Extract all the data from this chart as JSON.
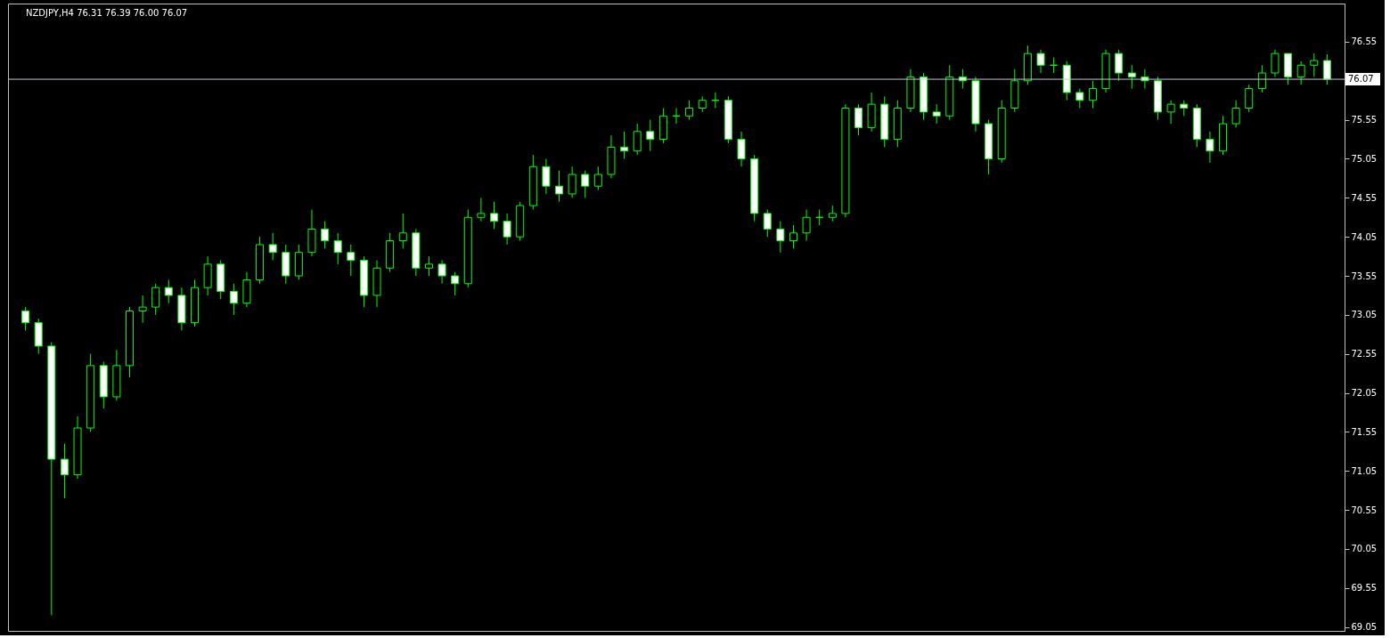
{
  "chart_data": {
    "type": "candlestick",
    "title": "NZDJPY,H4  76.31 76.39 76.00 76.07",
    "categories": [
      null,
      null,
      null,
      null,
      null,
      null,
      null,
      null,
      null,
      null,
      null,
      null,
      null,
      null,
      null,
      null,
      null,
      null,
      null,
      null,
      null,
      null,
      null,
      null,
      null,
      null,
      null,
      null,
      null,
      null,
      null,
      null,
      null,
      null,
      null,
      null,
      null,
      null,
      null,
      null,
      null,
      null,
      null,
      null,
      null,
      null,
      null,
      null,
      null,
      null,
      null,
      null,
      null,
      null,
      null,
      null,
      null,
      null,
      null,
      null,
      null,
      null,
      null,
      null,
      null,
      null,
      null,
      null,
      null,
      null,
      null,
      null,
      null,
      null,
      null,
      null,
      null,
      null,
      null,
      null,
      null,
      null,
      null,
      null,
      null,
      null,
      null,
      null,
      null,
      null,
      null,
      null,
      null,
      null,
      null,
      null,
      null,
      null,
      null,
      null,
      null
    ],
    "color": "#00ff00",
    "ohlc": [
      [
        73.1,
        73.15,
        72.85,
        72.95
      ],
      [
        72.95,
        73.0,
        72.55,
        72.65
      ],
      [
        72.65,
        72.7,
        69.2,
        71.2
      ],
      [
        71.2,
        71.4,
        70.7,
        71.0
      ],
      [
        71.0,
        71.75,
        70.95,
        71.6
      ],
      [
        71.6,
        72.55,
        71.55,
        72.4
      ],
      [
        72.4,
        72.45,
        71.85,
        72.0
      ],
      [
        72.0,
        72.6,
        71.95,
        72.4
      ],
      [
        72.4,
        73.15,
        72.25,
        73.1
      ],
      [
        73.1,
        73.3,
        72.95,
        73.15
      ],
      [
        73.15,
        73.45,
        73.05,
        73.4
      ],
      [
        73.4,
        73.5,
        73.2,
        73.3
      ],
      [
        73.3,
        73.4,
        72.85,
        72.95
      ],
      [
        72.95,
        73.5,
        72.9,
        73.4
      ],
      [
        73.4,
        73.8,
        73.3,
        73.7
      ],
      [
        73.7,
        73.75,
        73.25,
        73.35
      ],
      [
        73.35,
        73.45,
        73.05,
        73.2
      ],
      [
        73.2,
        73.6,
        73.15,
        73.5
      ],
      [
        73.5,
        74.05,
        73.45,
        73.95
      ],
      [
        73.95,
        74.1,
        73.75,
        73.85
      ],
      [
        73.85,
        73.95,
        73.45,
        73.55
      ],
      [
        73.55,
        73.95,
        73.5,
        73.85
      ],
      [
        73.85,
        74.4,
        73.8,
        74.15
      ],
      [
        74.15,
        74.25,
        73.9,
        74.0
      ],
      [
        74.0,
        74.1,
        73.7,
        73.85
      ],
      [
        73.85,
        73.95,
        73.55,
        73.75
      ],
      [
        73.75,
        73.8,
        73.15,
        73.3
      ],
      [
        73.3,
        73.75,
        73.15,
        73.65
      ],
      [
        73.65,
        74.1,
        73.6,
        74.0
      ],
      [
        74.0,
        74.35,
        73.9,
        74.1
      ],
      [
        74.1,
        74.15,
        73.55,
        73.65
      ],
      [
        73.65,
        73.8,
        73.55,
        73.7
      ],
      [
        73.7,
        73.75,
        73.45,
        73.55
      ],
      [
        73.55,
        73.6,
        73.3,
        73.45
      ],
      [
        73.45,
        74.4,
        73.4,
        74.3
      ],
      [
        74.3,
        74.55,
        74.25,
        74.35
      ],
      [
        74.35,
        74.5,
        74.15,
        74.25
      ],
      [
        74.25,
        74.35,
        73.95,
        74.05
      ],
      [
        74.05,
        74.5,
        74.0,
        74.45
      ],
      [
        74.45,
        75.1,
        74.4,
        74.95
      ],
      [
        74.95,
        75.05,
        74.6,
        74.7
      ],
      [
        74.7,
        74.9,
        74.5,
        74.6
      ],
      [
        74.6,
        74.95,
        74.55,
        74.85
      ],
      [
        74.85,
        74.9,
        74.55,
        74.7
      ],
      [
        74.7,
        74.95,
        74.65,
        74.85
      ],
      [
        74.85,
        75.35,
        74.8,
        75.2
      ],
      [
        75.2,
        75.4,
        75.05,
        75.15
      ],
      [
        75.15,
        75.5,
        75.1,
        75.4
      ],
      [
        75.4,
        75.55,
        75.15,
        75.3
      ],
      [
        75.3,
        75.7,
        75.25,
        75.6
      ],
      [
        75.6,
        75.7,
        75.5,
        75.6
      ],
      [
        75.6,
        75.8,
        75.55,
        75.7
      ],
      [
        75.7,
        75.85,
        75.65,
        75.8
      ],
      [
        75.8,
        75.9,
        75.7,
        75.8
      ],
      [
        75.8,
        75.85,
        75.25,
        75.3
      ],
      [
        75.3,
        75.4,
        74.95,
        75.05
      ],
      [
        75.05,
        75.1,
        74.25,
        74.35
      ],
      [
        74.35,
        74.4,
        74.05,
        74.15
      ],
      [
        74.15,
        74.25,
        73.85,
        74.0
      ],
      [
        74.0,
        74.2,
        73.9,
        74.1
      ],
      [
        74.1,
        74.4,
        74.0,
        74.3
      ],
      [
        74.3,
        74.4,
        74.2,
        74.3
      ],
      [
        74.3,
        74.45,
        74.25,
        74.35
      ],
      [
        74.35,
        75.75,
        74.3,
        75.7
      ],
      [
        75.7,
        75.75,
        75.35,
        75.45
      ],
      [
        75.45,
        75.9,
        75.4,
        75.75
      ],
      [
        75.75,
        75.85,
        75.2,
        75.3
      ],
      [
        75.3,
        75.8,
        75.2,
        75.7
      ],
      [
        75.7,
        76.2,
        75.65,
        76.1
      ],
      [
        76.1,
        76.15,
        75.55,
        75.65
      ],
      [
        75.65,
        75.75,
        75.5,
        75.6
      ],
      [
        75.6,
        76.25,
        75.55,
        76.1
      ],
      [
        76.1,
        76.2,
        75.95,
        76.05
      ],
      [
        76.05,
        76.1,
        75.4,
        75.5
      ],
      [
        75.5,
        75.55,
        74.85,
        75.05
      ],
      [
        75.05,
        75.8,
        75.0,
        75.7
      ],
      [
        75.7,
        76.2,
        75.65,
        76.05
      ],
      [
        76.05,
        76.5,
        76.0,
        76.4
      ],
      [
        76.4,
        76.45,
        76.15,
        76.25
      ],
      [
        76.25,
        76.35,
        76.15,
        76.25
      ],
      [
        76.25,
        76.3,
        75.8,
        75.9
      ],
      [
        75.9,
        75.95,
        75.7,
        75.8
      ],
      [
        75.8,
        76.05,
        75.7,
        75.95
      ],
      [
        75.95,
        76.45,
        75.9,
        76.4
      ],
      [
        76.4,
        76.45,
        76.05,
        76.15
      ],
      [
        76.15,
        76.25,
        75.95,
        76.1
      ],
      [
        76.1,
        76.2,
        75.95,
        76.05
      ],
      [
        76.05,
        76.1,
        75.55,
        75.65
      ],
      [
        75.65,
        75.8,
        75.5,
        75.75
      ],
      [
        75.75,
        75.8,
        75.6,
        75.7
      ],
      [
        75.7,
        75.75,
        75.2,
        75.3
      ],
      [
        75.3,
        75.4,
        75.0,
        75.15
      ],
      [
        75.15,
        75.6,
        75.1,
        75.5
      ],
      [
        75.5,
        75.8,
        75.45,
        75.7
      ],
      [
        75.7,
        76.0,
        75.65,
        75.95
      ],
      [
        75.95,
        76.25,
        75.9,
        76.15
      ],
      [
        76.15,
        76.45,
        76.1,
        76.4
      ],
      [
        76.4,
        76.4,
        76.0,
        76.1
      ],
      [
        76.1,
        76.3,
        76.0,
        76.25
      ],
      [
        76.25,
        76.4,
        76.1,
        76.31
      ],
      [
        76.31,
        76.39,
        76.0,
        76.07
      ]
    ],
    "ylim": [
      69.0,
      77.04
    ],
    "yticks": [
      69.05,
      69.55,
      70.05,
      70.55,
      71.05,
      71.55,
      72.05,
      72.55,
      73.05,
      73.55,
      74.05,
      74.55,
      75.05,
      75.55,
      {
        "value": 76.05,
        "label": null
      },
      76.55
    ],
    "ref_lines": [
      {
        "axis": "y",
        "value": 76.07,
        "label": "76.07",
        "color": "#c0c8d0"
      }
    ],
    "tick_labels": "y",
    "grid": false
  }
}
